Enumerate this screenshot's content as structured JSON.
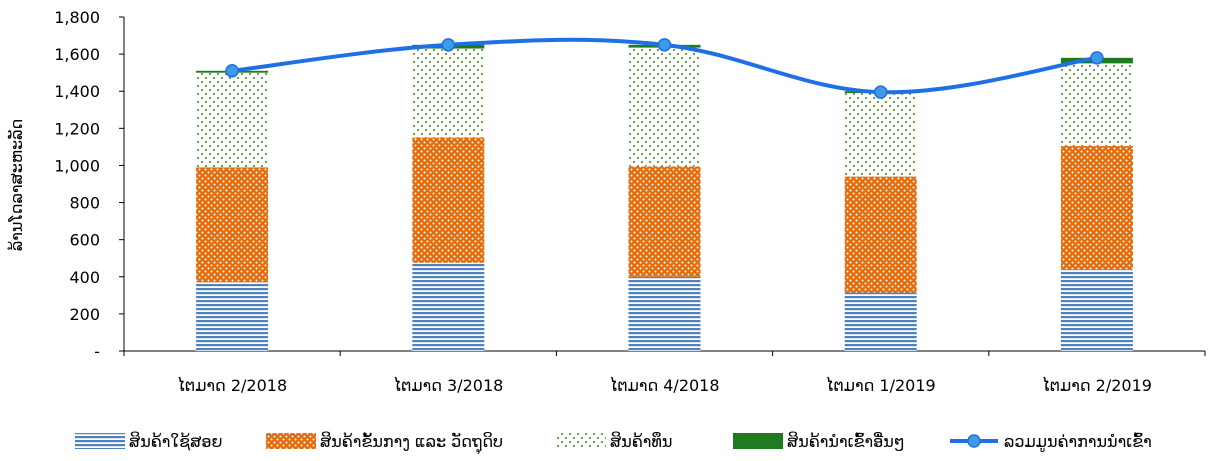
{
  "chart_data": {
    "type": "bar",
    "stacked": true,
    "title": "",
    "xlabel": "",
    "ylabel": "ລ້ານໂດລາສະຫະລັດ",
    "ylim": [
      0,
      1800
    ],
    "yticks": [
      0,
      200,
      400,
      600,
      800,
      1000,
      1200,
      1400,
      1600,
      1800
    ],
    "ytick_labels": [
      "-",
      "200",
      "400",
      "600",
      "800",
      "1,000",
      "1,200",
      "1,400",
      "1,600",
      "1,800"
    ],
    "grid": false,
    "legend_position": "bottom",
    "categories": [
      "ໄຕມາດ 2/2018",
      "ໄຕມາດ 3/2018",
      "ໄຕມາດ 4/2018",
      "ໄຕມາດ 1/2019",
      "ໄຕມາດ 2/2019"
    ],
    "series": [
      {
        "name": "ສິນຄ້າໃຊ້ສອຍ",
        "kind": "bar",
        "pattern": "horizontal-stripes",
        "color": "#4f81bd",
        "values": [
          370,
          475,
          400,
          315,
          440
        ]
      },
      {
        "name": "ສິນຄ້າຂັ້ນກາງ ແລະ ວັດຖຸດິບ",
        "kind": "bar",
        "pattern": "dots",
        "color": "#e46c0a",
        "values": [
          620,
          675,
          595,
          625,
          665
        ]
      },
      {
        "name": "ສິນຄ້າທຶນ",
        "kind": "bar",
        "pattern": "sparse-dots",
        "color": "#5e9a3a",
        "values": [
          510,
          480,
          640,
          450,
          445
        ]
      },
      {
        "name": "ສິນຄ້ານຳເຂົ້າອື່ນໆ",
        "kind": "bar",
        "pattern": "solid",
        "color": "#1e7b1e",
        "values": [
          10,
          20,
          15,
          10,
          30
        ]
      },
      {
        "name": "ລວມມູນຄ່າການນຳເຂົ້າ",
        "kind": "line",
        "color": "#1f6fe5",
        "marker_color": "#3d9be9",
        "values": [
          1510,
          1650,
          1650,
          1395,
          1580
        ]
      }
    ]
  }
}
